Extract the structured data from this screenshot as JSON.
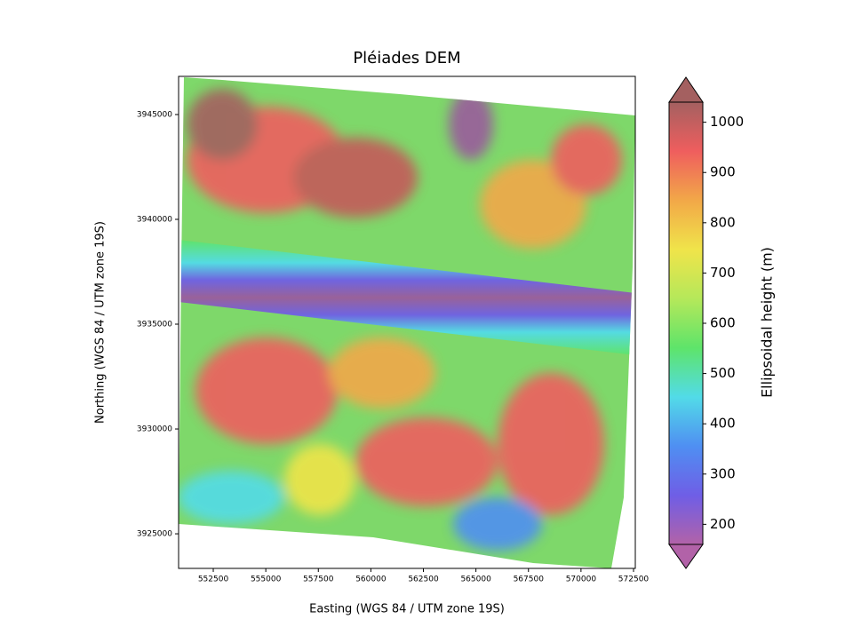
{
  "chart_data": {
    "type": "raster",
    "title": "Pléiades DEM",
    "x_label": "Easting (WGS 84 / UTM zone 19S)",
    "y_label": "Northing (WGS 84 / UTM zone 19S)",
    "xlim": [
      550850,
      572585
    ],
    "xticks": [
      552500,
      555000,
      557500,
      560000,
      562500,
      565000,
      567500,
      570000,
      572500
    ],
    "ylim": [
      3923350,
      3946820
    ],
    "yticks": [
      3925000,
      3930000,
      3935000,
      3940000,
      3945000
    ],
    "colorbar": {
      "label": "Ellipsoidal height (m)",
      "lim": [
        160,
        1040
      ],
      "ticks": [
        200,
        300,
        400,
        500,
        600,
        700,
        800,
        900,
        1000
      ],
      "colors": [
        "#b262a8",
        "#6f5ee6",
        "#4f8ff2",
        "#52dbe8",
        "#5ee46a",
        "#b5e85a",
        "#f0e44a",
        "#f2a848",
        "#ef5e5e",
        "#a46060"
      ]
    }
  }
}
